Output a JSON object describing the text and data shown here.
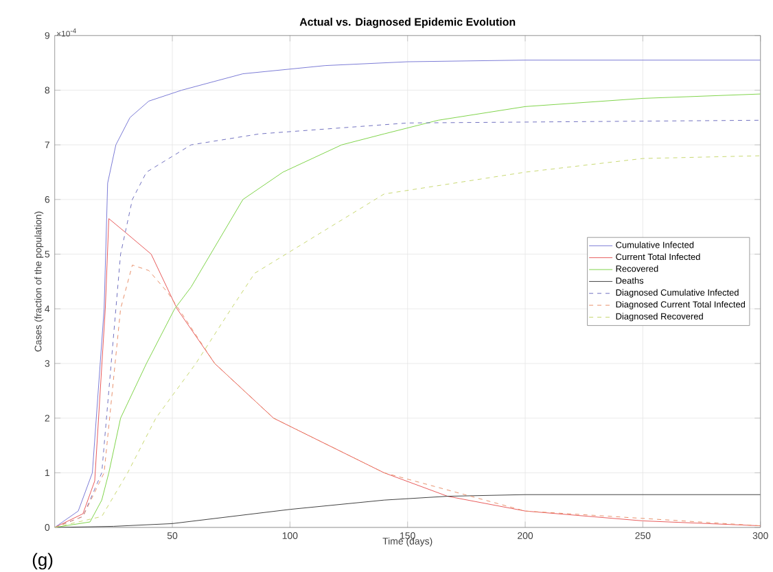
{
  "chart_data": {
    "type": "line",
    "title": "Actual vs. Diagnosed Epidemic Evolution",
    "xlabel": "Time (days)",
    "ylabel": "Cases (fraction of the population)",
    "annotations": [
      "×10$^{-4}$",
      "(g)"
    ],
    "xlim": [
      0,
      300
    ],
    "ylim": [
      0,
      9
    ],
    "xticks": [
      50,
      100,
      150,
      200,
      250,
      300
    ],
    "yticks": [
      0,
      1,
      2,
      3,
      4,
      5,
      6,
      7,
      8,
      9
    ],
    "grid": true,
    "legend": "right",
    "marker": "none",
    "series": [
      {
        "name": "Cumulative Infected",
        "color": "#7b7bd6",
        "line_style": "solid",
        "x": [
          0,
          10,
          16,
          21,
          22.5,
          26,
          32,
          40,
          54,
          80,
          115,
          150,
          200,
          300
        ],
        "values": [
          0,
          0.3,
          1,
          4,
          6.3,
          7,
          7.5,
          7.8,
          8,
          8.3,
          8.45,
          8.52,
          8.55,
          8.55
        ]
      },
      {
        "name": "Current Total Infected",
        "color": "#e85a5a",
        "line_style": "solid",
        "x": [
          0,
          12,
          17,
          21.5,
          23,
          30,
          41,
          52,
          68,
          93,
          100,
          140,
          167,
          200,
          250,
          300
        ],
        "values": [
          0,
          0.25,
          0.85,
          4,
          5.65,
          5.4,
          5,
          4,
          3,
          2,
          1.85,
          1,
          0.57,
          0.3,
          0.12,
          0.03
        ]
      },
      {
        "name": "Recovered",
        "color": "#7fd44a",
        "line_style": "solid",
        "x": [
          0,
          15,
          20,
          23,
          28,
          39,
          51,
          58,
          80,
          97,
          122,
          140,
          163,
          200,
          250,
          300
        ],
        "values": [
          0,
          0.1,
          0.5,
          1,
          2,
          3,
          4,
          4.4,
          6,
          6.5,
          7,
          7.2,
          7.45,
          7.7,
          7.85,
          7.93
        ]
      },
      {
        "name": "Deaths",
        "color": "#404040",
        "line_style": "solid",
        "x": [
          0,
          25,
          50,
          100,
          140,
          167,
          200,
          300
        ],
        "values": [
          0,
          0.02,
          0.07,
          0.33,
          0.5,
          0.57,
          0.6,
          0.6
        ]
      },
      {
        "name": "Diagnosed Cumulative Infected",
        "color": "#7070c0",
        "line_style": "dashed",
        "x": [
          0,
          12,
          20,
          26,
          28,
          33,
          39,
          58,
          87,
          150,
          300
        ],
        "values": [
          0,
          0.2,
          1,
          4,
          5,
          6,
          6.5,
          7,
          7.2,
          7.4,
          7.45
        ]
      },
      {
        "name": "Diagnosed Current Total Infected",
        "color": "#e8906a",
        "line_style": "dashed",
        "x": [
          0,
          12,
          21,
          28,
          33,
          40,
          48,
          55,
          68,
          93,
          140,
          200,
          300
        ],
        "values": [
          0,
          0.2,
          1,
          4,
          4.8,
          4.7,
          4.3,
          3.85,
          3,
          2,
          1,
          0.3,
          0.03
        ]
      },
      {
        "name": "Diagnosed Recovered",
        "color": "#c8d870",
        "line_style": "dashed",
        "x": [
          0,
          20,
          31,
          43,
          60,
          75,
          85,
          140,
          200,
          250,
          300
        ],
        "values": [
          0,
          0.2,
          1,
          2,
          3,
          4,
          4.65,
          6.1,
          6.5,
          6.75,
          6.8
        ]
      }
    ]
  }
}
